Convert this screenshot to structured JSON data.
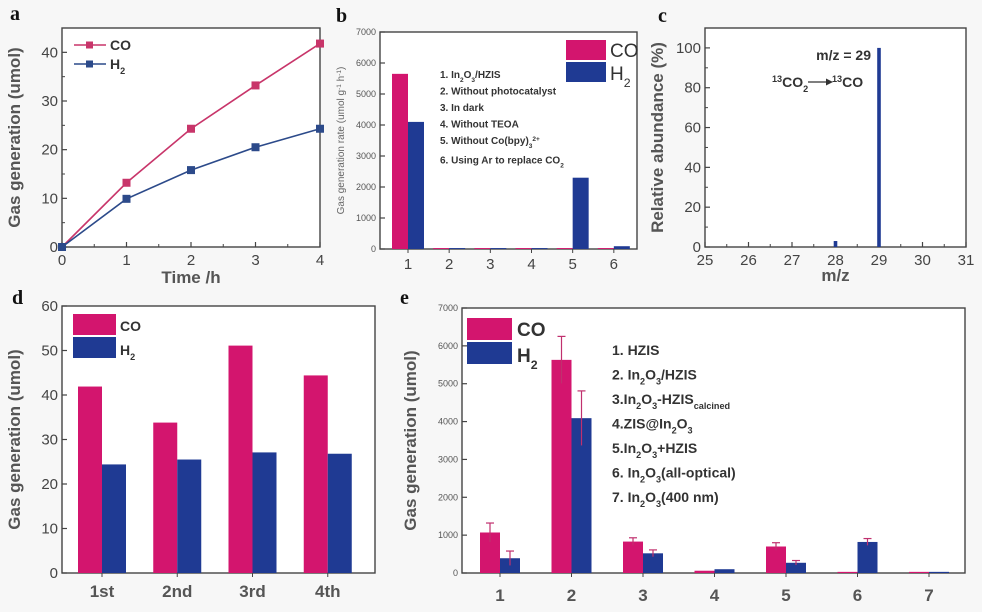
{
  "colors": {
    "co": "#d3156e",
    "h2": "#1f3a93",
    "co_line": "#c8356a",
    "h2_line": "#2c4a8a"
  },
  "chart_data": [
    {
      "panel": "a",
      "type": "line",
      "title": "",
      "xlabel": "Time /h",
      "ylabel": "Gas generation (umol)",
      "xlim": [
        0,
        4
      ],
      "ylim": [
        0,
        45
      ],
      "xticks": [
        0,
        1,
        2,
        3,
        4
      ],
      "yticks": [
        0,
        10,
        20,
        30,
        40
      ],
      "x": [
        0,
        1,
        2,
        3,
        4
      ],
      "series": [
        {
          "name": "CO",
          "values": [
            0,
            13.2,
            24.3,
            33.2,
            41.8
          ]
        },
        {
          "name": "H2",
          "values": [
            0,
            9.9,
            15.8,
            20.5,
            24.3
          ]
        }
      ],
      "legend": [
        "CO",
        "H2"
      ],
      "legend_position": "top-left"
    },
    {
      "panel": "b",
      "type": "bar",
      "xlabel": "",
      "ylabel": "Gas generation rate (umol g-1 h-1)",
      "ylim": [
        0,
        7000
      ],
      "yticks": [
        0,
        1000,
        2000,
        3000,
        4000,
        5000,
        6000,
        7000
      ],
      "categories": [
        "1",
        "2",
        "3",
        "4",
        "5",
        "6"
      ],
      "series": [
        {
          "name": "CO",
          "values": [
            5650,
            30,
            30,
            30,
            30,
            30
          ]
        },
        {
          "name": "H2",
          "values": [
            4100,
            30,
            30,
            30,
            2300,
            90
          ]
        }
      ],
      "legend": [
        "CO",
        "H2"
      ],
      "legend_position": "top-right",
      "annotations": [
        "1. In2O3/HZIS",
        "2. Without photocatalyst",
        "3. In dark",
        "4. Without TEOA",
        "5. Without Co(bpy)3 2+",
        "6. Using Ar to replace CO2"
      ]
    },
    {
      "panel": "c",
      "type": "bar",
      "xlabel": "m/z",
      "ylabel": "Relative abundance (%)",
      "xlim": [
        25,
        31
      ],
      "ylim": [
        0,
        110
      ],
      "xticks": [
        25,
        26,
        27,
        28,
        29,
        30,
        31
      ],
      "yticks": [
        0,
        20,
        40,
        60,
        80,
        100
      ],
      "x": [
        28,
        29
      ],
      "values": [
        3,
        100
      ],
      "annotations": [
        "m/z = 29",
        "13CO2 → 13CO"
      ]
    },
    {
      "panel": "d",
      "type": "bar",
      "xlabel": "",
      "ylabel": "Gas generation (umol)",
      "ylim": [
        0,
        60
      ],
      "yticks": [
        0,
        10,
        20,
        30,
        40,
        50,
        60
      ],
      "categories": [
        "1st",
        "2nd",
        "3rd",
        "4th"
      ],
      "series": [
        {
          "name": "CO",
          "values": [
            41.9,
            33.8,
            51.1,
            44.4
          ]
        },
        {
          "name": "H2",
          "values": [
            24.4,
            25.5,
            27.1,
            26.8
          ]
        }
      ],
      "legend": [
        "CO",
        "H2"
      ],
      "legend_position": "top-left"
    },
    {
      "panel": "e",
      "type": "bar",
      "xlabel": "",
      "ylabel": "Gas generation (umol)",
      "ylim": [
        0,
        7000
      ],
      "yticks": [
        0,
        1000,
        2000,
        3000,
        4000,
        5000,
        6000,
        7000
      ],
      "categories": [
        "1",
        "2",
        "3",
        "4",
        "5",
        "6",
        "7"
      ],
      "series": [
        {
          "name": "CO",
          "values": [
            1070,
            5630,
            830,
            60,
            700,
            30,
            30
          ],
          "errors": [
            250,
            620,
            100,
            0,
            100,
            0,
            0
          ]
        },
        {
          "name": "H2",
          "values": [
            390,
            4090,
            520,
            100,
            270,
            820,
            30
          ],
          "errors": [
            190,
            720,
            90,
            0,
            60,
            90,
            0
          ]
        }
      ],
      "legend": [
        "CO",
        "H2"
      ],
      "legend_position": "top-left",
      "annotations": [
        "1. HZIS",
        "2. In2O3/HZIS",
        "3.In2O3-HZIS calcined",
        "4.ZIS@In2O3",
        "5.In2O3+HZIS",
        "6. In2O3(all-optical)",
        "7. In2O3(400 nm)"
      ]
    }
  ],
  "labels": {
    "a": "a",
    "b": "b",
    "c": "c",
    "d": "d",
    "e": "e",
    "co": "CO",
    "h2": "H",
    "h2_sub": "2",
    "c_mz": "m/z = 29",
    "c_reaction_left": "CO",
    "c_reaction_right": "CO",
    "c_13": "13",
    "c_2": "2"
  }
}
